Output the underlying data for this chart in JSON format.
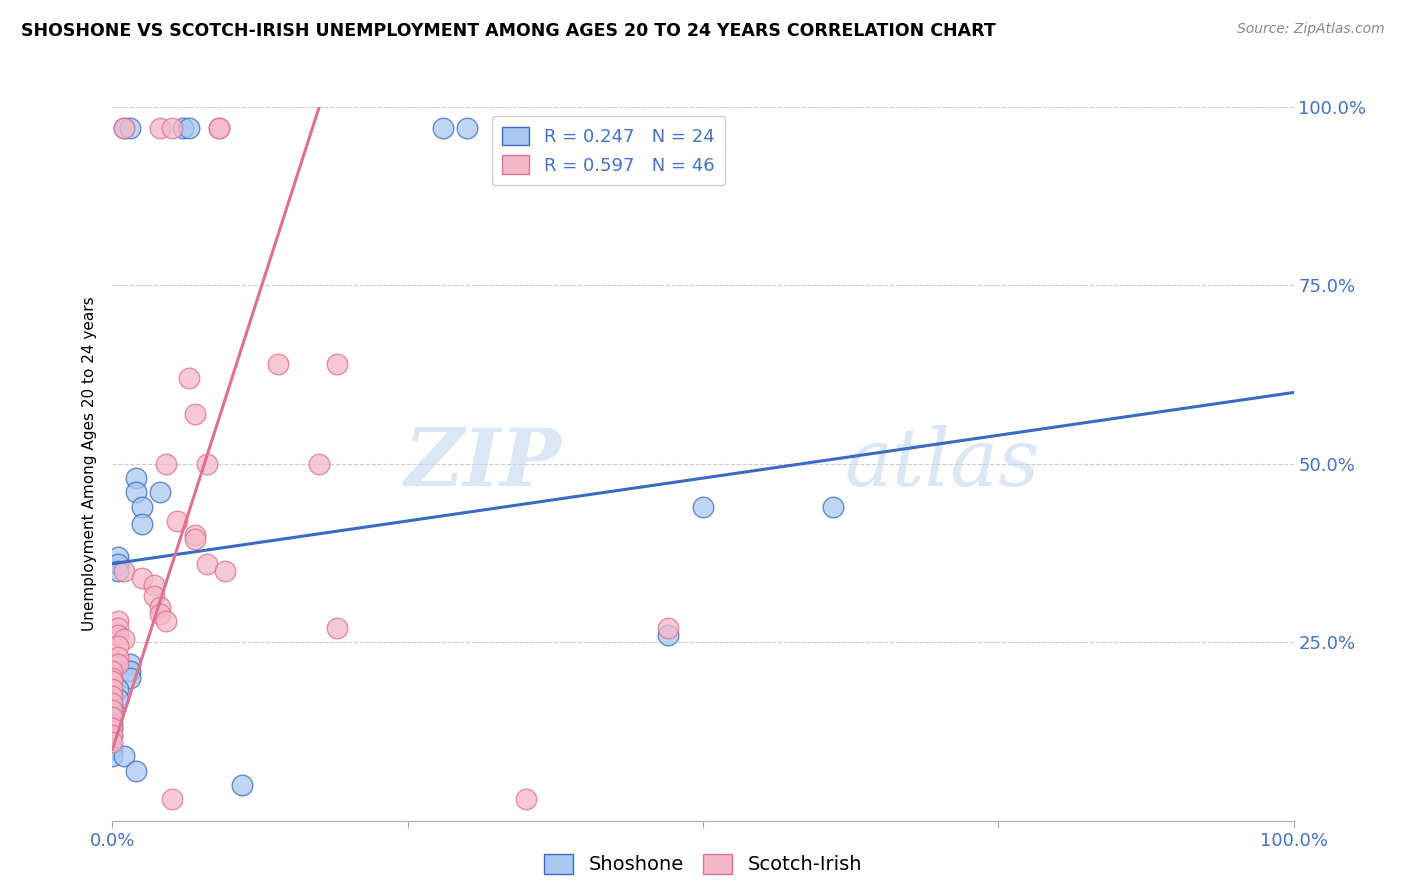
{
  "title": "SHOSHONE VS SCOTCH-IRISH UNEMPLOYMENT AMONG AGES 20 TO 24 YEARS CORRELATION CHART",
  "source": "Source: ZipAtlas.com",
  "ylabel": "Unemployment Among Ages 20 to 24 years",
  "xlim": [
    0,
    1.0
  ],
  "ylim": [
    0,
    1.0
  ],
  "shoshone_color": "#a8c8f0",
  "scotch_irish_color": "#f4b8c8",
  "line_shoshone_color": "#3a6bc4",
  "line_scotch_irish_color": "#e07090",
  "watermark_zip": "ZIP",
  "watermark_atlas": "atlas",
  "shoshone_points": [
    [
      0.01,
      0.97
    ],
    [
      0.015,
      0.97
    ],
    [
      0.06,
      0.97
    ],
    [
      0.065,
      0.97
    ],
    [
      0.28,
      0.97
    ],
    [
      0.3,
      0.97
    ],
    [
      0.02,
      0.48
    ],
    [
      0.02,
      0.46
    ],
    [
      0.025,
      0.44
    ],
    [
      0.04,
      0.46
    ],
    [
      0.025,
      0.415
    ],
    [
      0.005,
      0.37
    ],
    [
      0.005,
      0.36
    ],
    [
      0.005,
      0.35
    ],
    [
      0.015,
      0.22
    ],
    [
      0.015,
      0.21
    ],
    [
      0.015,
      0.2
    ],
    [
      0.005,
      0.185
    ],
    [
      0.005,
      0.17
    ],
    [
      0.0,
      0.16
    ],
    [
      0.0,
      0.15
    ],
    [
      0.0,
      0.145
    ],
    [
      0.0,
      0.135
    ],
    [
      0.0,
      0.13
    ],
    [
      0.0,
      0.12
    ],
    [
      0.0,
      0.1
    ],
    [
      0.0,
      0.09
    ],
    [
      0.01,
      0.09
    ],
    [
      0.5,
      0.44
    ],
    [
      0.61,
      0.44
    ],
    [
      0.47,
      0.26
    ],
    [
      0.02,
      0.07
    ],
    [
      0.11,
      0.05
    ]
  ],
  "scotch_irish_points": [
    [
      0.01,
      0.97
    ],
    [
      0.04,
      0.97
    ],
    [
      0.05,
      0.97
    ],
    [
      0.09,
      0.97
    ],
    [
      0.09,
      0.97
    ],
    [
      0.065,
      0.62
    ],
    [
      0.07,
      0.57
    ],
    [
      0.08,
      0.5
    ],
    [
      0.14,
      0.64
    ],
    [
      0.19,
      0.64
    ],
    [
      0.175,
      0.5
    ],
    [
      0.045,
      0.5
    ],
    [
      0.055,
      0.42
    ],
    [
      0.07,
      0.4
    ],
    [
      0.07,
      0.395
    ],
    [
      0.08,
      0.36
    ],
    [
      0.095,
      0.35
    ],
    [
      0.01,
      0.35
    ],
    [
      0.025,
      0.34
    ],
    [
      0.035,
      0.33
    ],
    [
      0.035,
      0.315
    ],
    [
      0.04,
      0.3
    ],
    [
      0.04,
      0.29
    ],
    [
      0.045,
      0.28
    ],
    [
      0.005,
      0.28
    ],
    [
      0.005,
      0.27
    ],
    [
      0.005,
      0.26
    ],
    [
      0.01,
      0.255
    ],
    [
      0.005,
      0.245
    ],
    [
      0.005,
      0.23
    ],
    [
      0.005,
      0.22
    ],
    [
      0.0,
      0.21
    ],
    [
      0.0,
      0.2
    ],
    [
      0.0,
      0.195
    ],
    [
      0.0,
      0.185
    ],
    [
      0.0,
      0.175
    ],
    [
      0.0,
      0.165
    ],
    [
      0.0,
      0.155
    ],
    [
      0.0,
      0.145
    ],
    [
      0.0,
      0.13
    ],
    [
      0.0,
      0.12
    ],
    [
      0.0,
      0.11
    ],
    [
      0.19,
      0.27
    ],
    [
      0.47,
      0.27
    ],
    [
      0.05,
      0.03
    ],
    [
      0.35,
      0.03
    ]
  ],
  "shoshone_line_x0": 0.0,
  "shoshone_line_x1": 1.0,
  "shoshone_line_y0": 0.36,
  "shoshone_line_y1": 0.6,
  "scotch_irish_line_x0": 0.0,
  "scotch_irish_line_x1": 0.175,
  "scotch_irish_line_y0": 0.1,
  "scotch_irish_line_y1": 1.0
}
